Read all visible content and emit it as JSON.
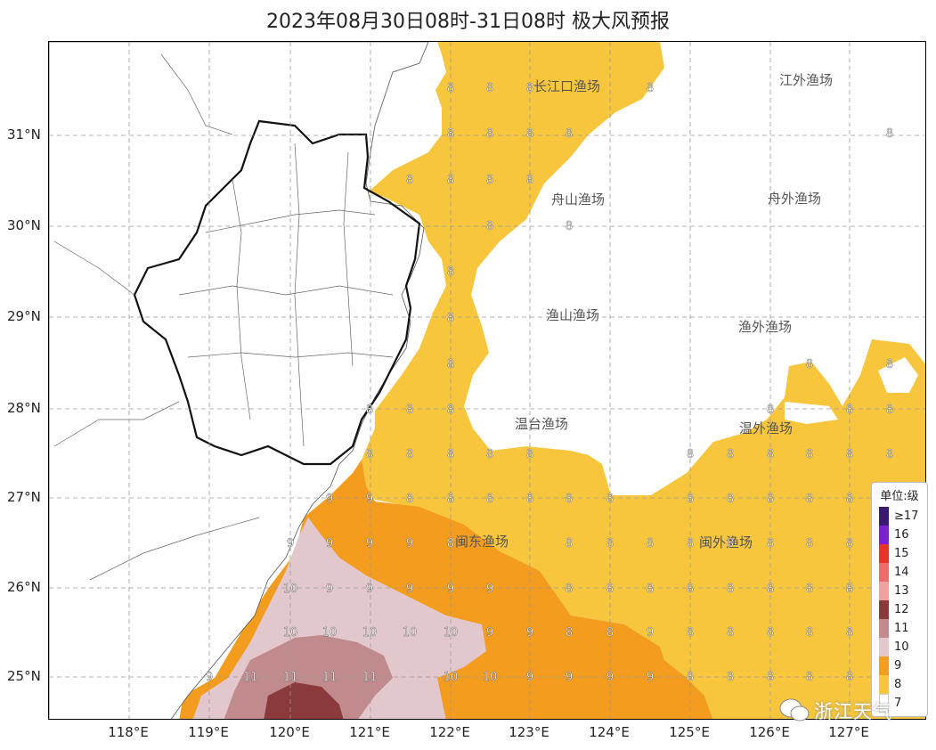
{
  "title": "2023年08月30日08时-31日08时 极大风预报",
  "lat_labels": [
    "31°N",
    "30°N",
    "29°N",
    "28°N",
    "27°N",
    "26°N",
    "25°N"
  ],
  "lon_labels": [
    "118°E",
    "119°E",
    "120°E",
    "121°E",
    "122°E",
    "123°E",
    "124°E",
    "125°E",
    "126°E",
    "127°E"
  ],
  "fishing_grounds": [
    "长江口渔场",
    "江外渔场",
    "舟山渔场",
    "舟外渔场",
    "渔山渔场",
    "渔外渔场",
    "温台渔场",
    "温外渔场",
    "闽东渔场",
    "闽外渔场"
  ],
  "wind_grid_values": [
    "8 8 8 8 | 8",
    "8 8 8 8 8 8 8",
    "8 8 8 9 9 9 9 10 10 10 11 11 11 11 9 10 10"
  ],
  "legend": {
    "title": "单位:级",
    "levels": [
      {
        "label": "≥17",
        "color": "#3a1a6e"
      },
      {
        "label": "16",
        "color": "#7b1fd4"
      },
      {
        "label": "15",
        "color": "#e8322a"
      },
      {
        "label": "14",
        "color": "#ef6a6a"
      },
      {
        "label": "13",
        "color": "#f2a0a0"
      },
      {
        "label": "12",
        "color": "#8a3a3a"
      },
      {
        "label": "11",
        "color": "#c18a8c"
      },
      {
        "label": "10",
        "color": "#e2c8cc"
      },
      {
        "label": "9",
        "color": "#f39c1e"
      },
      {
        "label": "8",
        "color": "#f7c63d"
      },
      {
        "label": "7",
        "color": "#ffffff"
      }
    ]
  },
  "watermark": "浙江天气",
  "colors": {
    "level8": "#f7c63d",
    "level9": "#f39c1e",
    "level10": "#e2c8cc",
    "level11": "#c18a8c",
    "level12": "#8a3a3a",
    "grid": "#9a9a9a",
    "border": "#111111"
  }
}
